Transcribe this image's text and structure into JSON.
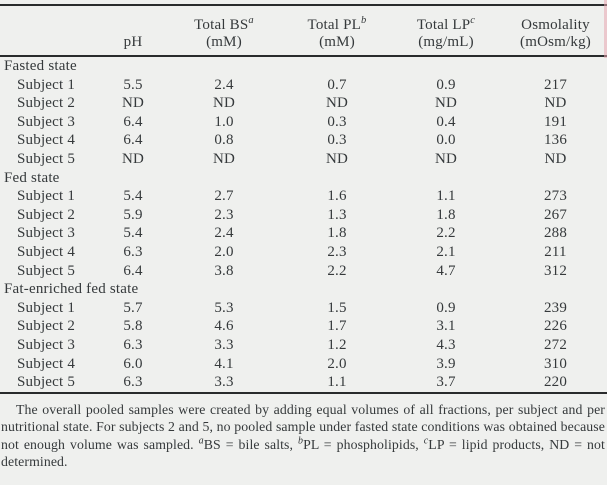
{
  "page": {
    "background": "#eff0ee",
    "ink": "#35393b",
    "rule_color": "#292b2c"
  },
  "table": {
    "columns": [
      {
        "key": "ph",
        "name": "pH",
        "sup": "",
        "unit": ""
      },
      {
        "key": "total-bs",
        "name": "Total BS",
        "sup": "a",
        "unit": "(mM)"
      },
      {
        "key": "total-pl",
        "name": "Total PL",
        "sup": "b",
        "unit": "(mM)"
      },
      {
        "key": "total-lp",
        "name": "Total LP",
        "sup": "c",
        "unit": "(mg/mL)"
      },
      {
        "key": "osmolality",
        "name": "Osmolality",
        "sup": "",
        "unit": "(mOsm/kg)"
      }
    ],
    "groups": [
      {
        "label": "Fasted state",
        "rows": [
          {
            "label": "Subject 1",
            "values": [
              "5.5",
              "2.4",
              "0.7",
              "0.9",
              "217"
            ]
          },
          {
            "label": "Subject 2",
            "values": [
              "ND",
              "ND",
              "ND",
              "ND",
              "ND"
            ]
          },
          {
            "label": "Subject 3",
            "values": [
              "6.4",
              "1.0",
              "0.3",
              "0.4",
              "191"
            ]
          },
          {
            "label": "Subject 4",
            "values": [
              "6.4",
              "0.8",
              "0.3",
              "0.0",
              "136"
            ]
          },
          {
            "label": "Subject 5",
            "values": [
              "ND",
              "ND",
              "ND",
              "ND",
              "ND"
            ]
          }
        ]
      },
      {
        "label": "Fed state",
        "rows": [
          {
            "label": "Subject 1",
            "values": [
              "5.4",
              "2.7",
              "1.6",
              "1.1",
              "273"
            ]
          },
          {
            "label": "Subject 2",
            "values": [
              "5.9",
              "2.3",
              "1.3",
              "1.8",
              "267"
            ]
          },
          {
            "label": "Subject 3",
            "values": [
              "5.4",
              "2.4",
              "1.8",
              "2.2",
              "288"
            ]
          },
          {
            "label": "Subject 4",
            "values": [
              "6.3",
              "2.0",
              "2.3",
              "2.1",
              "211"
            ]
          },
          {
            "label": "Subject 5",
            "values": [
              "6.4",
              "3.8",
              "2.2",
              "4.7",
              "312"
            ]
          }
        ]
      },
      {
        "label": "Fat-enriched fed state",
        "rows": [
          {
            "label": "Subject 1",
            "values": [
              "5.7",
              "5.3",
              "1.5",
              "0.9",
              "239"
            ]
          },
          {
            "label": "Subject 2",
            "values": [
              "5.8",
              "4.6",
              "1.7",
              "3.1",
              "226"
            ]
          },
          {
            "label": "Subject 3",
            "values": [
              "6.3",
              "3.3",
              "1.2",
              "4.3",
              "272"
            ]
          },
          {
            "label": "Subject 4",
            "values": [
              "6.0",
              "4.1",
              "2.0",
              "3.9",
              "310"
            ]
          },
          {
            "label": "Subject 5",
            "values": [
              "6.3",
              "3.3",
              "1.1",
              "3.7",
              "220"
            ]
          }
        ]
      }
    ]
  },
  "footnote": {
    "segments": [
      {
        "text": "The overall pooled samples were created by adding equal volumes of all fractions, per subject and per nutritional state. For subjects 2 and 5, no pooled sample under fasted state conditions was obtained because not enough volume was sampled. "
      },
      {
        "sup": "a"
      },
      {
        "text": "BS = bile salts, "
      },
      {
        "sup": "b"
      },
      {
        "text": "PL = phospholipids, "
      },
      {
        "sup": "c"
      },
      {
        "text": "LP = lipid products, ND = not determined."
      }
    ]
  }
}
